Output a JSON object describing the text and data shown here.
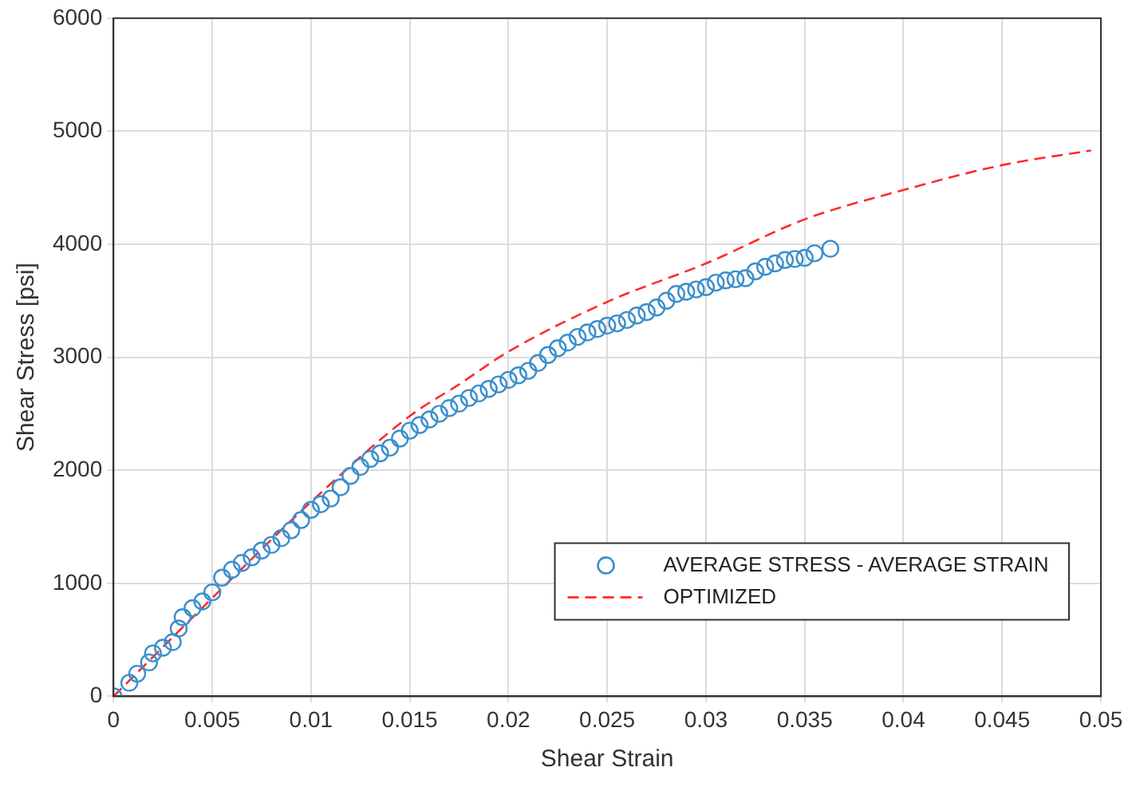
{
  "chart_data": {
    "type": "scatter",
    "xlabel": "Shear Strain",
    "ylabel": "Shear Stress [psi]",
    "xlim": [
      0,
      0.05
    ],
    "xticks": [
      0,
      0.005,
      0.01,
      0.015,
      0.02,
      0.025,
      0.03,
      0.035,
      0.04,
      0.045,
      0.05
    ],
    "ylim": [
      0,
      6000
    ],
    "yticks": [
      0,
      1000,
      2000,
      3000,
      4000,
      5000,
      6000
    ],
    "grid": true,
    "legend": "bottom right",
    "series": [
      {
        "name": "AVERAGE STRESS - AVERAGE STRAIN",
        "type": "scatter",
        "marker": "circle",
        "color": "#3a8fcc",
        "x": [
          0,
          0.0008,
          0.0012,
          0.0018,
          0.002,
          0.0025,
          0.003,
          0.0033,
          0.0035,
          0.004,
          0.0045,
          0.005,
          0.0055,
          0.006,
          0.0065,
          0.007,
          0.0075,
          0.008,
          0.0085,
          0.009,
          0.0095,
          0.01,
          0.0105,
          0.011,
          0.0115,
          0.012,
          0.0125,
          0.013,
          0.0135,
          0.014,
          0.0145,
          0.015,
          0.0155,
          0.016,
          0.0165,
          0.017,
          0.0175,
          0.018,
          0.0185,
          0.019,
          0.0195,
          0.02,
          0.0205,
          0.021,
          0.0215,
          0.022,
          0.0225,
          0.023,
          0.0235,
          0.024,
          0.0245,
          0.025,
          0.0255,
          0.026,
          0.0265,
          0.027,
          0.0275,
          0.028,
          0.0285,
          0.029,
          0.0295,
          0.03,
          0.0305,
          0.031,
          0.0315,
          0.032,
          0.0325,
          0.033,
          0.0335,
          0.034,
          0.0345,
          0.035,
          0.0355,
          0.0363
        ],
        "values": [
          0,
          120,
          200,
          300,
          380,
          430,
          480,
          600,
          700,
          780,
          840,
          920,
          1050,
          1120,
          1180,
          1230,
          1290,
          1340,
          1400,
          1470,
          1560,
          1650,
          1700,
          1750,
          1850,
          1950,
          2030,
          2100,
          2150,
          2200,
          2280,
          2350,
          2400,
          2450,
          2500,
          2550,
          2590,
          2640,
          2680,
          2720,
          2760,
          2800,
          2840,
          2880,
          2950,
          3020,
          3080,
          3130,
          3180,
          3220,
          3250,
          3280,
          3300,
          3330,
          3370,
          3400,
          3440,
          3500,
          3560,
          3580,
          3600,
          3620,
          3660,
          3680,
          3690,
          3700,
          3760,
          3800,
          3830,
          3860,
          3870,
          3880,
          3920,
          3960
        ]
      },
      {
        "name": "OPTIMIZED",
        "type": "line",
        "marker": "none",
        "line_style": "dashed",
        "color": "#ff2a2a",
        "x": [
          0,
          0.005,
          0.01,
          0.015,
          0.0175,
          0.02,
          0.025,
          0.03,
          0.035,
          0.04,
          0.045,
          0.0495
        ],
        "values": [
          0,
          870,
          1720,
          2480,
          2760,
          3050,
          3490,
          3830,
          4220,
          4480,
          4700,
          4830
        ]
      }
    ]
  }
}
